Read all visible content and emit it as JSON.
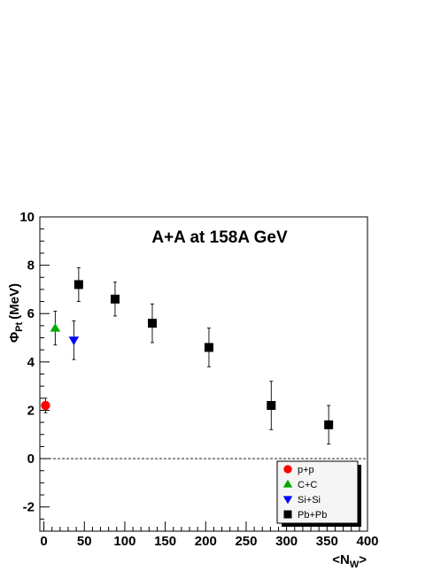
{
  "chart_data": {
    "type": "scatter",
    "title": "A+A at 158A GeV",
    "xlabel": {
      "main": "<N",
      "sub": "W",
      "end": ">"
    },
    "ylabel": {
      "symbol": "Φ",
      "sub": "Pt",
      "unit": "(MeV)"
    },
    "xlim": [
      -5,
      400
    ],
    "ylim": [
      -3,
      10
    ],
    "xticks": [
      0,
      50,
      100,
      150,
      200,
      250,
      300,
      350,
      400
    ],
    "yticks": [
      -2,
      0,
      2,
      4,
      6,
      8,
      10
    ],
    "reference_line_y": 0,
    "legend_position": "bottom-right",
    "series": [
      {
        "name": "p+p",
        "marker": "circle",
        "color": "#ff0000",
        "points": [
          {
            "x": 2,
            "y": 2.2,
            "err": 0.3
          }
        ]
      },
      {
        "name": "C+C",
        "marker": "triangle-up",
        "color": "#00aa00",
        "points": [
          {
            "x": 14,
            "y": 5.4,
            "err": 0.7
          }
        ]
      },
      {
        "name": "Si+Si",
        "marker": "triangle-down",
        "color": "#0000ff",
        "points": [
          {
            "x": 37,
            "y": 4.9,
            "err": 0.8
          }
        ]
      },
      {
        "name": "Pb+Pb",
        "marker": "square",
        "color": "#000000",
        "points": [
          {
            "x": 43,
            "y": 7.2,
            "err": 0.7
          },
          {
            "x": 88,
            "y": 6.6,
            "err": 0.7
          },
          {
            "x": 134,
            "y": 5.6,
            "err": 0.8
          },
          {
            "x": 204,
            "y": 4.6,
            "err": 0.8
          },
          {
            "x": 281,
            "y": 2.2,
            "err": 1.0
          },
          {
            "x": 352,
            "y": 1.4,
            "err": 0.8
          }
        ]
      }
    ]
  }
}
